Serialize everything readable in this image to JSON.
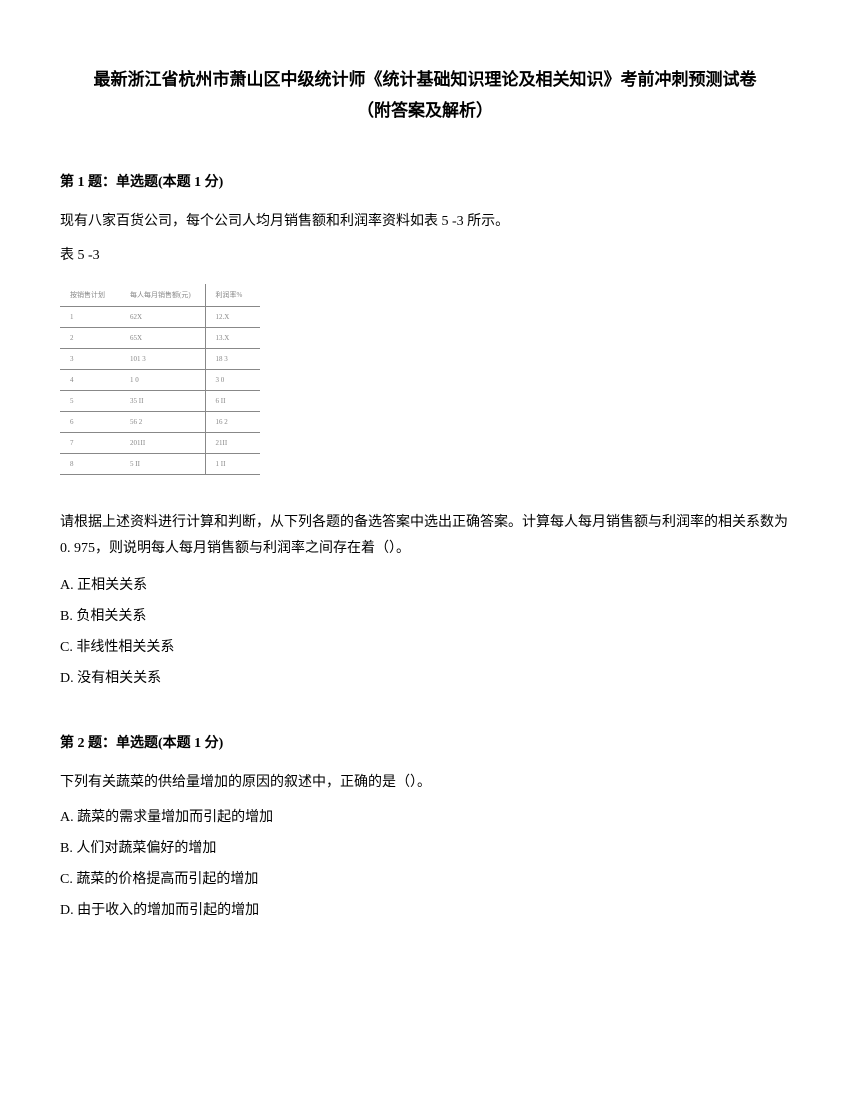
{
  "title": {
    "line1": "最新浙江省杭州市萧山区中级统计师《统计基础知识理论及相关知识》考前冲刺预测试卷",
    "line2": "（附答案及解析）"
  },
  "question1": {
    "header": "第 1 题：单选题(本题 1 分)",
    "text": "现有八家百货公司，每个公司人均月销售额和利润率资料如表 5 -3 所示。",
    "tableLabel": "表 5 -3",
    "table": {
      "headers": [
        "按销售计划",
        "每人每月销售额(元)",
        "利润率%"
      ],
      "rows": [
        [
          "1",
          "62X",
          "12.X"
        ],
        [
          "2",
          "65X",
          "13.X"
        ],
        [
          "3",
          "101 3",
          "18 3"
        ],
        [
          "4",
          "1 0",
          "3 0"
        ],
        [
          "5",
          "35 II",
          "6 II"
        ],
        [
          "6",
          "56 2",
          "16 2"
        ],
        [
          "7",
          "201II",
          "21II"
        ],
        [
          "8",
          "5 II",
          "1 II"
        ]
      ]
    },
    "instruction": "请根据上述资料进行计算和判断，从下列各题的备选答案中选出正确答案。计算每人每月销售额与利润率的相关系数为 0. 975，则说明每人每月销售额与利润率之间存在着（）。",
    "options": {
      "A": "A. 正相关关系",
      "B": "B. 负相关关系",
      "C": "C. 非线性相关关系",
      "D": "D. 没有相关关系"
    }
  },
  "question2": {
    "header": "第 2 题：单选题(本题 1 分)",
    "text": "下列有关蔬菜的供给量增加的原因的叙述中，正确的是（）。",
    "options": {
      "A": "A. 蔬菜的需求量增加而引起的增加",
      "B": "B. 人们对蔬菜偏好的增加",
      "C": "C. 蔬菜的价格提高而引起的增加",
      "D": "D. 由于收入的增加而引起的增加"
    }
  }
}
